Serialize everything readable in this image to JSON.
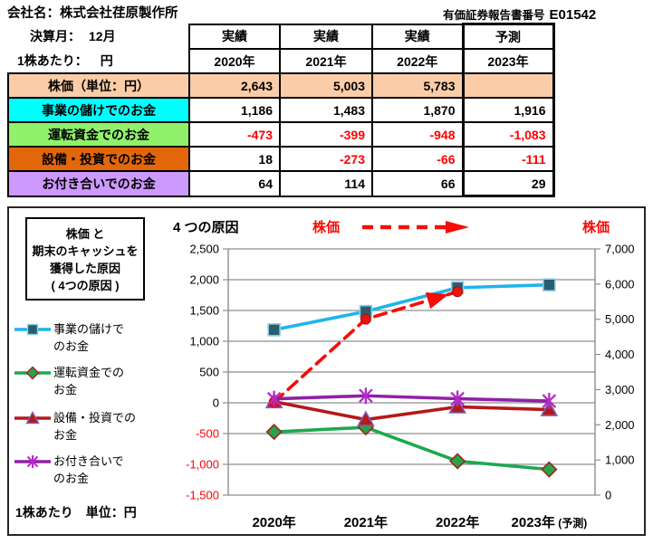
{
  "header": {
    "company": "会社名：株式会社荏原製作所",
    "report_label": "有価証券報告書番号",
    "report_number": "E01542"
  },
  "table": {
    "fiscal_month_label": "決算月：",
    "fiscal_month_value": "12月",
    "per_share_label": "1株あたり：",
    "per_share_unit": "円",
    "columns": [
      {
        "status": "実績",
        "year": "2020年"
      },
      {
        "status": "実績",
        "year": "2021年"
      },
      {
        "status": "実績",
        "year": "2022年"
      },
      {
        "status": "予測",
        "year": "2023年"
      }
    ],
    "rows": [
      {
        "label": "株価（単位：円）",
        "bg": "#FACDA8",
        "values": [
          "2,643",
          "5,003",
          "5,783",
          ""
        ]
      },
      {
        "label": "事業の儲けでのお金",
        "bg": "#00FFFF",
        "values": [
          "1,186",
          "1,483",
          "1,870",
          "1,916"
        ]
      },
      {
        "label": "運転資金でのお金",
        "bg": "#90F26A",
        "values": [
          "-473",
          "-399",
          "-948",
          "-1,083"
        ]
      },
      {
        "label": "設備・投資でのお金",
        "bg": "#E2670B",
        "values": [
          "18",
          "-273",
          "-66",
          "-111"
        ]
      },
      {
        "label": "お付き合いでのお金",
        "bg": "#CC99FF",
        "values": [
          "64",
          "114",
          "66",
          "29"
        ]
      }
    ],
    "negative_color": "#FF0000"
  },
  "panel": {
    "box_title_lines": [
      "株価 と",
      "期末のキャッシュを",
      "獲得した原因",
      "( 4つの原因 )"
    ],
    "legend_items": [
      {
        "lines": [
          "事業の儲けで",
          "のお金"
        ],
        "marker": "square"
      },
      {
        "lines": [
          "運転資金での",
          "お金"
        ],
        "marker": "diamond"
      },
      {
        "lines": [
          "設備・投資での",
          "お金"
        ],
        "marker": "triangle"
      },
      {
        "lines": [
          "お付き合いで",
          "のお金"
        ],
        "marker": "asterisk"
      }
    ],
    "footer_note": "1株あたり　単位：円",
    "annotation_causes": "4 つの原因",
    "annotation_price_mid": "株価",
    "annotation_price_right": "株価",
    "annotation_color": "#F50D07"
  },
  "chart_data": {
    "type": "line",
    "categories": [
      "2020年",
      "2021年",
      "2022年",
      "2023年 (予測)"
    ],
    "left_axis": {
      "min": -1500,
      "max": 2500,
      "step": 500,
      "negative_label_color": "#FF0000"
    },
    "right_axis": {
      "min": 0,
      "max": 7000,
      "step": 1000
    },
    "grid": true,
    "grid_color": "#8E8E8E",
    "series": [
      {
        "name": "事業の儲けでのお金",
        "axis": "left",
        "marker": "square",
        "color": "#1FB4EC",
        "marker_fill": "#2A5E6E",
        "marker_stroke": "#8FD0E8",
        "values": [
          1186,
          1483,
          1870,
          1916
        ]
      },
      {
        "name": "運転資金でのお金",
        "axis": "left",
        "marker": "diamond",
        "color": "#1FA750",
        "marker_fill": "#27A34C",
        "marker_stroke": "#A5231C",
        "values": [
          -473,
          -399,
          -948,
          -1083
        ]
      },
      {
        "name": "設備・投資でのお金",
        "axis": "left",
        "marker": "triangle",
        "color": "#B51918",
        "marker_fill": "#B51918",
        "marker_stroke": "#7B62B5",
        "values": [
          18,
          -273,
          -66,
          -111
        ]
      },
      {
        "name": "株価",
        "axis": "right",
        "marker": "circle",
        "color": "#F50D07",
        "marker_fill": "#E8150D",
        "marker_stroke": "#B00D08",
        "dashed": true,
        "arrow": true,
        "values": [
          2643,
          5003,
          5783,
          null
        ]
      },
      {
        "name": "お付き合いでのお金",
        "axis": "left",
        "marker": "asterisk",
        "color": "#9021A8",
        "marker_fill": "none",
        "marker_stroke": "#B62ACA",
        "values": [
          64,
          114,
          66,
          29
        ]
      }
    ]
  }
}
